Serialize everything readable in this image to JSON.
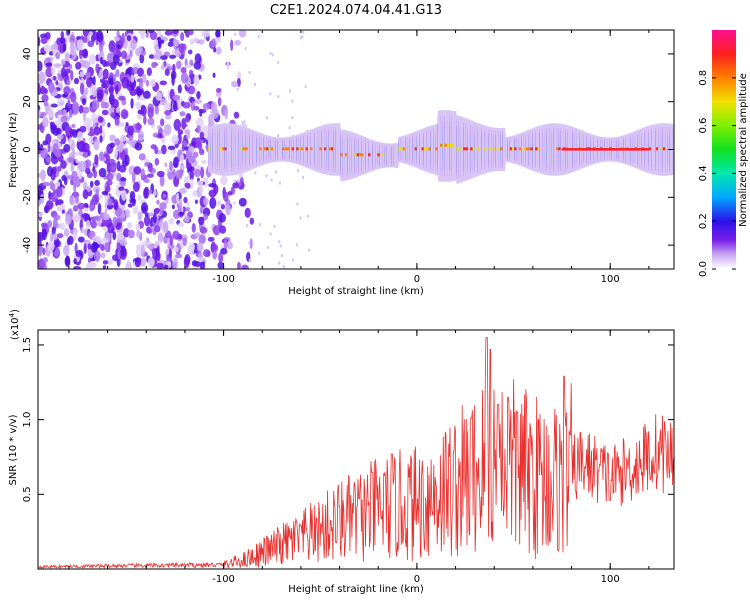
{
  "title": "C2E1.2024.074.04.41.G13",
  "colors": {
    "line": "#e8302e",
    "axis": "#000000",
    "background": "#ffffff"
  },
  "chart_data": [
    {
      "type": "heatmap",
      "xlabel": "Height of straight line (km)",
      "ylabel": "Frequency (Hz)",
      "xlim": [
        -196,
        133
      ],
      "ylim": [
        -50,
        50
      ],
      "x_ticks": [
        -100,
        0,
        100
      ],
      "x_tick_labels": [
        "-100",
        "0",
        "100"
      ],
      "y_ticks": [
        -40,
        -20,
        0,
        20,
        40
      ],
      "y_tick_labels": [
        "-40",
        "-20",
        "0",
        "20",
        "40"
      ],
      "colorbar": {
        "label": "Normalized spectral amplitude",
        "range": [
          0,
          1
        ],
        "ticks": [
          0,
          0.2,
          0.4,
          0.6,
          0.8
        ],
        "tick_labels": [
          "0.0",
          "0.2",
          "0.4",
          "0.6",
          "0.8"
        ],
        "colormap": "rainbow"
      },
      "features": {
        "noise_region_x": [
          -196,
          -95
        ],
        "signal_band_x": [
          -108,
          133
        ],
        "signal_center_hz": 0
      }
    },
    {
      "type": "line",
      "xlabel": "Height of straight line (km)",
      "ylabel": "SNR (10 * v/v)",
      "y_multiplier_label": "(x10",
      "y_multiplier_exp": "4",
      "y_multiplier_close": ")",
      "xlim": [
        -196,
        133
      ],
      "ylim": [
        0,
        16000
      ],
      "x_ticks": [
        -100,
        0,
        100
      ],
      "x_tick_labels": [
        "-100",
        "0",
        "100"
      ],
      "y_ticks": [
        5000,
        10000,
        15000
      ],
      "y_tick_labels": [
        "0.5",
        "1.0",
        "1.5"
      ],
      "series": [
        {
          "trend_x": [
            -196,
            -150,
            -100,
            -90,
            -80,
            -70,
            -60,
            -50,
            -40,
            -30,
            -20,
            -10,
            0,
            10,
            20,
            30,
            35,
            40,
            45,
            50,
            55,
            60,
            65,
            70,
            75,
            80,
            85,
            90,
            100,
            105,
            110,
            115,
            120,
            125,
            133
          ],
          "trend_y": [
            150,
            220,
            280,
            600,
            1100,
            1600,
            2100,
            2600,
            3200,
            3500,
            4000,
            4200,
            4400,
            5000,
            5600,
            6300,
            7000,
            7300,
            7100,
            6800,
            6500,
            6300,
            6100,
            6000,
            6100,
            6600,
            7100,
            6900,
            6200,
            6400,
            6700,
            7100,
            7600,
            7900,
            7500
          ],
          "spikes_x": [
            -60,
            -52,
            -40,
            -30,
            -13,
            19,
            28,
            36,
            38,
            42,
            47,
            52,
            76,
            100
          ],
          "spikes_y": [
            2900,
            3400,
            4200,
            4700,
            7700,
            7900,
            10100,
            15500,
            14700,
            11000,
            11500,
            10500,
            12900,
            4600
          ]
        }
      ]
    }
  ]
}
